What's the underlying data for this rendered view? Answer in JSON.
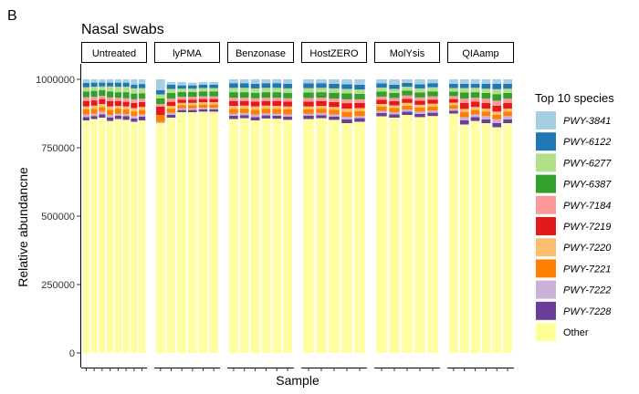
{
  "figure": {
    "panel_letter": "B",
    "title": "Nasal swabs"
  },
  "colors": {
    "PWY-3841": "#a6cee3",
    "PWY-6122": "#1f78b4",
    "PWY-6277": "#b2df8a",
    "PWY-6387": "#33a02c",
    "PWY-7184": "#fb9a99",
    "PWY-7219": "#e31a1c",
    "PWY-7220": "#fdbf6f",
    "PWY-7221": "#ff7f00",
    "PWY-7222": "#cab2d6",
    "PWY-7228": "#6a3d9a",
    "Other": "#ffff99"
  },
  "chart_data": {
    "type": "bar",
    "stacked": true,
    "title": "Nasal swabs",
    "xlabel": "Sample",
    "ylabel": "Relative abundancne",
    "ylim": [
      0,
      1000000
    ],
    "yticks": [
      0,
      250000,
      500000,
      750000,
      1000000
    ],
    "ytick_labels": [
      "0",
      "250000",
      "500000",
      "750000",
      "1000000"
    ],
    "legend": {
      "title": "Top 10 species",
      "position": "right",
      "entries": [
        "PWY-3841",
        "PWY-6122",
        "PWY-6277",
        "PWY-6387",
        "PWY-7184",
        "PWY-7219",
        "PWY-7220",
        "PWY-7221",
        "PWY-7222",
        "PWY-7228",
        "Other"
      ]
    },
    "stack_order_bottom_to_top": [
      "Other",
      "PWY-7228",
      "PWY-7222",
      "PWY-7221",
      "PWY-7220",
      "PWY-7219",
      "PWY-7184",
      "PWY-6387",
      "PWY-6277",
      "PWY-6122",
      "PWY-3841"
    ],
    "facets": [
      {
        "name": "Untreated",
        "samples": [
          [
            850000,
            12000,
            9000,
            20000,
            10000,
            20000,
            14000,
            20000,
            16000,
            16000,
            13000
          ],
          [
            855000,
            11000,
            8000,
            18000,
            12000,
            19000,
            13000,
            22000,
            15000,
            15000,
            12000
          ],
          [
            860000,
            12000,
            10000,
            17000,
            11000,
            18000,
            12000,
            20000,
            14000,
            14000,
            12000
          ],
          [
            848000,
            13000,
            9000,
            19000,
            12000,
            20000,
            13000,
            22000,
            18000,
            14000,
            12000
          ],
          [
            855000,
            12000,
            8000,
            18000,
            10000,
            18000,
            12000,
            20000,
            20000,
            15000,
            12000
          ],
          [
            852000,
            13000,
            8000,
            17000,
            11000,
            17000,
            13000,
            22000,
            20000,
            15000,
            12000
          ],
          [
            845000,
            12000,
            9000,
            17000,
            12000,
            19000,
            13000,
            21000,
            19000,
            14000,
            19000
          ],
          [
            850000,
            14000,
            8000,
            16000,
            11000,
            18000,
            12000,
            20000,
            19000,
            15000,
            17000
          ]
        ]
      },
      {
        "name": "lyPMA",
        "samples": [
          [
            840000,
            0,
            5000,
            25000,
            0,
            30000,
            10000,
            20000,
            15000,
            15000,
            40000
          ],
          [
            860000,
            10000,
            8000,
            15000,
            10000,
            15000,
            12000,
            20000,
            15000,
            15000,
            10000
          ],
          [
            880000,
            8000,
            6000,
            12000,
            8000,
            12000,
            10000,
            18000,
            12000,
            12000,
            12000
          ],
          [
            880000,
            8000,
            6000,
            12000,
            8000,
            12000,
            10000,
            18000,
            12000,
            12000,
            10000
          ],
          [
            882000,
            8000,
            6000,
            12000,
            8000,
            12000,
            10000,
            18000,
            12000,
            12000,
            10000
          ],
          [
            882000,
            8000,
            6000,
            12000,
            8000,
            12000,
            10000,
            18000,
            12000,
            12000,
            10000
          ]
        ]
      },
      {
        "name": "Benzonase",
        "samples": [
          [
            855000,
            12000,
            8000,
            17000,
            11000,
            18000,
            12000,
            20000,
            16000,
            17000,
            14000
          ],
          [
            858000,
            11000,
            8000,
            16000,
            11000,
            17000,
            12000,
            20000,
            16000,
            17000,
            14000
          ],
          [
            850000,
            12000,
            9000,
            18000,
            12000,
            18000,
            12000,
            20000,
            16000,
            17000,
            16000
          ],
          [
            857000,
            11000,
            8000,
            17000,
            11000,
            17000,
            12000,
            20000,
            16000,
            17000,
            14000
          ],
          [
            856000,
            11000,
            8000,
            17000,
            11000,
            18000,
            12000,
            20000,
            16000,
            17000,
            14000
          ],
          [
            852000,
            12000,
            8000,
            18000,
            11000,
            18000,
            12000,
            20000,
            16000,
            17000,
            16000
          ]
        ]
      },
      {
        "name": "HostZERO",
        "samples": [
          [
            855000,
            12000,
            8000,
            16000,
            10000,
            18000,
            13000,
            20000,
            16000,
            17000,
            15000
          ],
          [
            858000,
            11000,
            8000,
            16000,
            10000,
            17000,
            13000,
            20000,
            16000,
            17000,
            14000
          ],
          [
            852000,
            12000,
            8000,
            17000,
            10000,
            18000,
            13000,
            21000,
            16000,
            17000,
            16000
          ],
          [
            840000,
            14000,
            9000,
            18000,
            12000,
            20000,
            14000,
            22000,
            16000,
            17000,
            18000
          ],
          [
            845000,
            13000,
            8000,
            18000,
            11000,
            19000,
            13000,
            20000,
            16000,
            17000,
            20000
          ]
        ]
      },
      {
        "name": "MolYsis",
        "samples": [
          [
            865000,
            12000,
            8000,
            15000,
            10000,
            15000,
            12000,
            18000,
            15000,
            15000,
            15000
          ],
          [
            860000,
            12000,
            8000,
            15000,
            10000,
            15000,
            12000,
            18000,
            15000,
            15000,
            20000
          ],
          [
            870000,
            12000,
            8000,
            14000,
            10000,
            15000,
            12000,
            18000,
            14000,
            14000,
            13000
          ],
          [
            862000,
            12000,
            8000,
            15000,
            10000,
            15000,
            12000,
            18000,
            15000,
            15000,
            18000
          ],
          [
            866000,
            12000,
            8000,
            15000,
            10000,
            15000,
            12000,
            18000,
            15000,
            15000,
            14000
          ]
        ]
      },
      {
        "name": "QIAamp",
        "samples": [
          [
            875000,
            10000,
            8000,
            13000,
            9000,
            13000,
            11000,
            16000,
            13000,
            16000,
            16000
          ],
          [
            835000,
            15000,
            12000,
            18000,
            12000,
            22000,
            16000,
            22000,
            16000,
            16000,
            16000
          ],
          [
            848000,
            14000,
            10000,
            16000,
            11000,
            20000,
            14000,
            20000,
            16000,
            15000,
            16000
          ],
          [
            840000,
            14000,
            12000,
            16000,
            11000,
            21000,
            16000,
            20000,
            16000,
            18000,
            16000
          ],
          [
            825000,
            15000,
            14000,
            16000,
            12000,
            22000,
            18000,
            24000,
            18000,
            20000,
            16000
          ],
          [
            840000,
            14000,
            12000,
            16000,
            11000,
            21000,
            16000,
            20000,
            16000,
            18000,
            16000
          ]
        ]
      }
    ]
  }
}
